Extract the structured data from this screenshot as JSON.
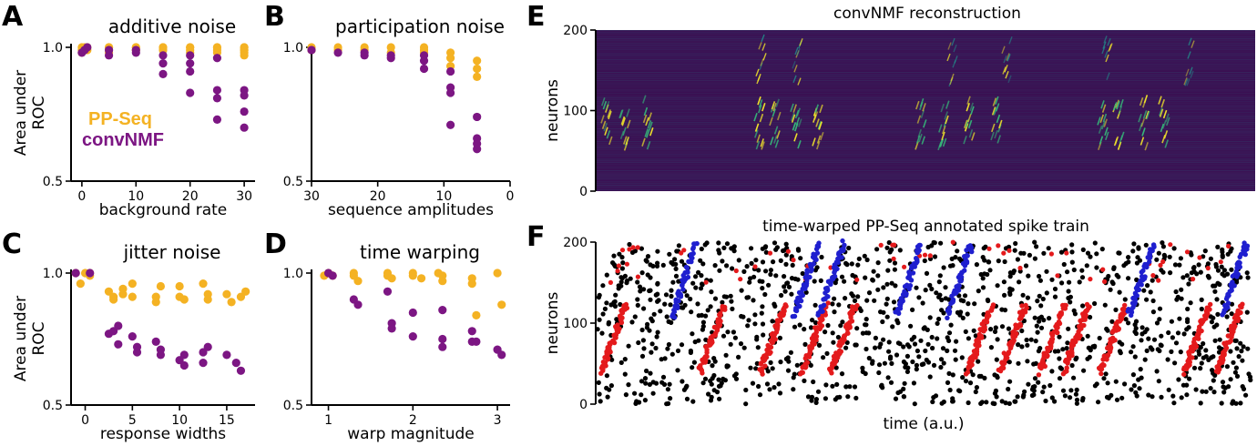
{
  "colors": {
    "ppseq": "#f4b223",
    "convnmf": "#7c1683",
    "spike_background": "#000000",
    "spike_seq1": "#e41a1c",
    "spike_seq2": "#1f1fcf",
    "heatmap_low": "#3b0f52",
    "heatmap_high": "#f2e52a"
  },
  "panel_letters": [
    "A",
    "B",
    "C",
    "D",
    "E",
    "F"
  ],
  "legend": {
    "ppseq": "PP-Seq",
    "convnmf": "convNMF"
  },
  "shared_ylabel": [
    "Area under",
    "ROC"
  ],
  "chart_data": [
    {
      "id": "A",
      "type": "scatter",
      "title": "additive noise",
      "xlabel": "background rate",
      "ylabel": "Area under ROC",
      "xlim": [
        -2,
        32
      ],
      "ylim": [
        0.5,
        1.0
      ],
      "xticks": [
        0,
        10,
        20,
        30
      ],
      "yticks": [
        0.5,
        1.0
      ],
      "yticklabels": [
        "0.5",
        "1.0"
      ],
      "series": [
        {
          "name": "PP-Seq",
          "x": [
            0,
            0,
            0,
            0.5,
            1,
            1,
            5,
            5,
            5,
            5,
            10,
            10,
            10,
            10,
            15,
            15,
            15,
            20,
            20,
            20,
            20,
            25,
            25,
            25,
            25,
            30,
            30,
            30,
            30,
            30,
            30
          ],
          "y": [
            0.98,
            0.99,
            1.0,
            1.0,
            0.99,
            1.0,
            1.0,
            0.99,
            0.98,
            1.0,
            1.0,
            0.99,
            1.0,
            0.99,
            1.0,
            0.99,
            1.0,
            1.0,
            0.99,
            0.98,
            1.0,
            1.0,
            0.99,
            0.98,
            1.0,
            1.0,
            0.99,
            0.98,
            0.97,
            0.99,
            1.0
          ]
        },
        {
          "name": "convNMF",
          "x": [
            0,
            0.5,
            1,
            5,
            5,
            10,
            10,
            15,
            15,
            15,
            20,
            20,
            20,
            20,
            25,
            25,
            25,
            25,
            30,
            30,
            30,
            30
          ],
          "y": [
            0.98,
            0.99,
            1.0,
            0.99,
            0.97,
            0.99,
            0.98,
            0.97,
            0.94,
            0.9,
            0.97,
            0.94,
            0.91,
            0.83,
            0.96,
            0.84,
            0.81,
            0.73,
            0.84,
            0.82,
            0.76,
            0.7
          ]
        }
      ]
    },
    {
      "id": "B",
      "type": "scatter",
      "title": "participation noise",
      "xlabel": "sequence amplitudes",
      "ylabel": "",
      "xlim": [
        30,
        0
      ],
      "ylim": [
        0.5,
        1.0
      ],
      "xticks": [
        30,
        20,
        10,
        0
      ],
      "yticks": [
        0.5,
        1.0
      ],
      "yticklabels": [
        "0.5",
        "1.0"
      ],
      "series": [
        {
          "name": "PP-Seq",
          "x": [
            30,
            30,
            26,
            26,
            22,
            22,
            18,
            18,
            13,
            13,
            13,
            9,
            9,
            9,
            5,
            5,
            5
          ],
          "y": [
            1.0,
            0.99,
            1.0,
            0.99,
            1.0,
            0.99,
            1.0,
            0.98,
            1.0,
            0.99,
            0.98,
            0.98,
            0.96,
            0.93,
            0.95,
            0.92,
            0.89
          ]
        },
        {
          "name": "convNMF",
          "x": [
            30,
            26,
            22,
            22,
            18,
            18,
            13,
            13,
            13,
            9,
            9,
            9,
            9,
            5,
            5,
            5,
            5
          ],
          "y": [
            0.99,
            0.98,
            0.98,
            0.97,
            0.97,
            0.96,
            0.97,
            0.95,
            0.92,
            0.91,
            0.85,
            0.83,
            0.71,
            0.74,
            0.66,
            0.64,
            0.62
          ]
        }
      ]
    },
    {
      "id": "C",
      "type": "scatter",
      "title": "jitter noise",
      "xlabel": "response widths",
      "ylabel": "Area under ROC",
      "xlim": [
        -1.5,
        18
      ],
      "ylim": [
        0.5,
        1.0
      ],
      "xticks": [
        0,
        5,
        10,
        15
      ],
      "yticks": [
        0.5,
        1.0
      ],
      "yticklabels": [
        "0.5",
        "1.0"
      ],
      "series": [
        {
          "name": "PP-Seq",
          "x": [
            -1,
            -0.5,
            0,
            0.5,
            0.5,
            2.5,
            3,
            3,
            4,
            4,
            5,
            5,
            7.5,
            7.5,
            8,
            10,
            10,
            10.5,
            12.5,
            13,
            13,
            15,
            15.5,
            16.5,
            17
          ],
          "y": [
            1.0,
            0.96,
            1.0,
            0.99,
            1.0,
            0.93,
            0.91,
            0.9,
            0.94,
            0.92,
            0.96,
            0.91,
            0.91,
            0.89,
            0.95,
            0.95,
            0.91,
            0.9,
            0.96,
            0.92,
            0.9,
            0.92,
            0.89,
            0.91,
            0.93
          ]
        },
        {
          "name": "convNMF",
          "x": [
            -1,
            0.5,
            2.5,
            3,
            3.5,
            3.5,
            5,
            5.5,
            5.5,
            7.5,
            8,
            8,
            10,
            10.5,
            10.5,
            12.5,
            12.5,
            13,
            15,
            16,
            16.5
          ],
          "y": [
            1.0,
            1.0,
            0.77,
            0.78,
            0.8,
            0.73,
            0.76,
            0.72,
            0.7,
            0.74,
            0.71,
            0.69,
            0.67,
            0.69,
            0.65,
            0.7,
            0.66,
            0.72,
            0.69,
            0.66,
            0.63
          ]
        }
      ]
    },
    {
      "id": "D",
      "type": "scatter",
      "title": "time warping",
      "xlabel": "warp magnitude",
      "ylabel": "",
      "xlim": [
        0.8,
        3.15
      ],
      "ylim": [
        0.5,
        1.0
      ],
      "xticks": [
        1,
        2,
        3
      ],
      "yticks": [
        0.5,
        1.0
      ],
      "yticklabels": [
        "0.5",
        "1.0"
      ],
      "series": [
        {
          "name": "PP-Seq",
          "x": [
            0.95,
            1.0,
            1.05,
            1.3,
            1.3,
            1.35,
            1.7,
            1.7,
            1.75,
            2.0,
            2.0,
            2.1,
            2.3,
            2.35,
            2.35,
            2.7,
            2.7,
            2.75,
            3.0,
            3.05
          ],
          "y": [
            0.99,
            1.0,
            0.99,
            1.0,
            0.99,
            0.97,
            1.0,
            0.99,
            0.98,
            1.0,
            0.99,
            0.98,
            1.0,
            0.99,
            0.97,
            0.98,
            0.96,
            0.84,
            1.0,
            0.88
          ]
        },
        {
          "name": "convNMF",
          "x": [
            1.0,
            1.05,
            1.3,
            1.35,
            1.7,
            1.75,
            1.75,
            2.0,
            2.0,
            2.35,
            2.35,
            2.35,
            2.7,
            2.7,
            2.75,
            3.0,
            3.05
          ],
          "y": [
            1.0,
            0.99,
            0.9,
            0.88,
            0.93,
            0.81,
            0.79,
            0.85,
            0.76,
            0.86,
            0.75,
            0.72,
            0.78,
            0.74,
            0.74,
            0.71,
            0.69
          ]
        }
      ]
    },
    {
      "id": "E",
      "type": "heatmap",
      "title": "convNMF reconstruction",
      "xlabel": "",
      "ylabel": "neurons",
      "ylim": [
        0,
        200
      ],
      "yticks": [
        0,
        100,
        200
      ]
    },
    {
      "id": "F",
      "type": "scatter",
      "title": "time-warped PP-Seq annotated spike train",
      "xlabel": "time (a.u.)",
      "ylabel": "neurons",
      "ylim": [
        0,
        200
      ],
      "yticks": [
        0,
        100,
        200
      ]
    }
  ]
}
